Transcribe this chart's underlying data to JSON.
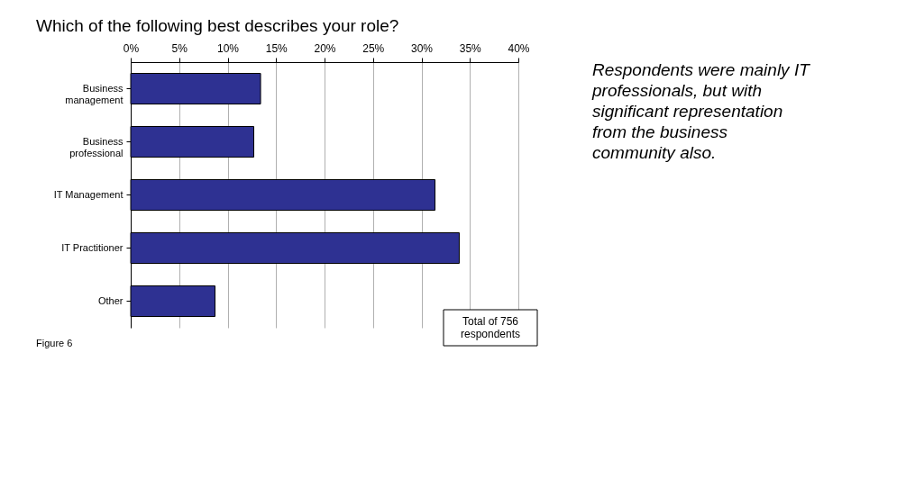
{
  "chart_data": {
    "type": "bar",
    "orientation": "horizontal",
    "title": "Which of the following best describes your role?",
    "categories": [
      "Business management",
      "Business professional",
      "IT Management",
      "IT Practitioner",
      "Other"
    ],
    "values": [
      13.4,
      12.7,
      31.4,
      33.9,
      8.7
    ],
    "color": "#2e3192",
    "xlim": [
      0,
      40
    ],
    "xticks": [
      {
        "value": 0,
        "label": "0%"
      },
      {
        "value": 5,
        "label": "5%"
      },
      {
        "value": 10,
        "label": "10%"
      },
      {
        "value": 15,
        "label": "15%"
      },
      {
        "value": 20,
        "label": "20%"
      },
      {
        "value": 25,
        "label": "25%"
      },
      {
        "value": 30,
        "label": "30%"
      },
      {
        "value": 35,
        "label": "35%"
      },
      {
        "value": 40,
        "label": "40%"
      }
    ],
    "grid": "x",
    "annotations": [
      "Figure 6",
      "Total of 756 respondents",
      "Respondents were mainly IT professionals, but with significant representation from the business community also."
    ]
  }
}
